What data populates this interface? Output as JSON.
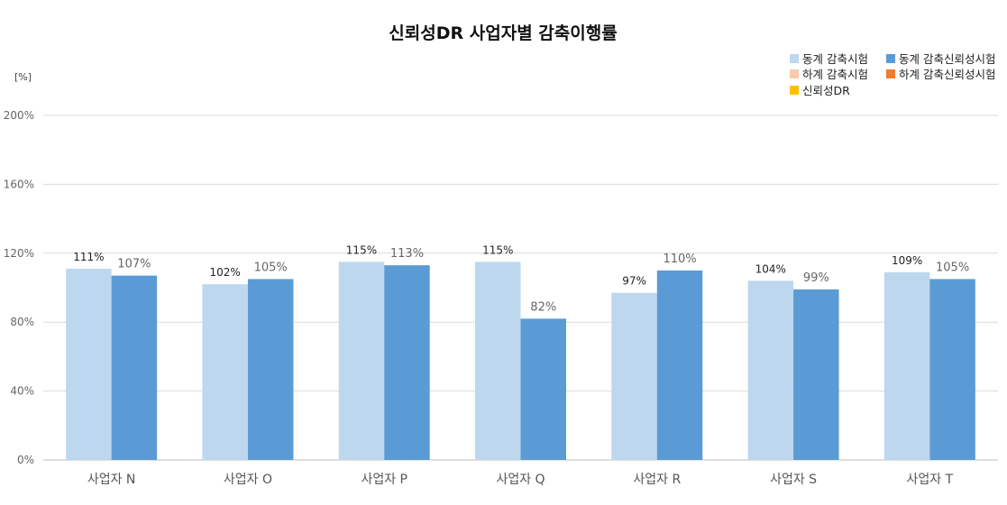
{
  "chart_data": {
    "type": "bar",
    "title": "신뢰성DR 사업자별 감축이행률",
    "ylabel": "[%]",
    "xlabel": "",
    "ylim": [
      0,
      200
    ],
    "yticks": [
      "0%",
      "40%",
      "80%",
      "120%",
      "160%",
      "200%"
    ],
    "ytick_values": [
      0,
      40,
      80,
      120,
      160,
      200
    ],
    "grid": true,
    "legend_position": "top-right",
    "legend": [
      {
        "name": "동계 감축시험",
        "color": "#BDD7EE"
      },
      {
        "name": "동계 감축신뢰성시험",
        "color": "#5B9BD5"
      },
      {
        "name": "하계 감축시험",
        "color": "#F8CBAD"
      },
      {
        "name": "하계 감축신뢰성시험",
        "color": "#ED7D31"
      },
      {
        "name": "신뢰성DR",
        "color": "#FFC000"
      }
    ],
    "categories": [
      "사업자 N",
      "사업자 O",
      "사업자 P",
      "사업자 Q",
      "사업자 R",
      "사업자 S",
      "사업자 T"
    ],
    "series": [
      {
        "name": "동계 감축시험",
        "color": "#BDD7EE",
        "values": [
          111,
          102,
          115,
          115,
          97,
          104,
          109
        ],
        "labels": [
          "111%",
          "102%",
          "115%",
          "115%",
          "97%",
          "104%",
          "109%"
        ]
      },
      {
        "name": "동계 감축신뢰성시험",
        "color": "#5B9BD5",
        "values": [
          107,
          105,
          113,
          82,
          110,
          99,
          105
        ],
        "labels": [
          "107%",
          "105%",
          "113%",
          "82%",
          "110%",
          "99%",
          "105%"
        ]
      }
    ]
  }
}
